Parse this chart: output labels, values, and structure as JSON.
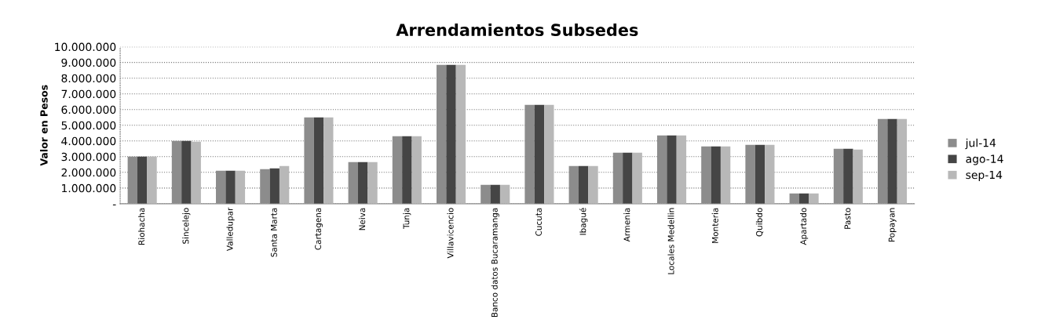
{
  "chart_data": {
    "type": "bar",
    "title": "Arrendamientos Subsedes",
    "ylabel": "Valor en Pesos",
    "categories": [
      "Riohacha",
      "Sincelejo",
      "Valledupar",
      "Santa Marta",
      "Cartagena",
      "Neiva",
      "Tunja",
      "Villavicencio",
      "Banco datos Bucaramanga",
      "Cucuta",
      "Ibagué",
      "Armenia",
      "Locales Medellin",
      "Monteria",
      "Quibdo",
      "Apartado",
      "Pasto",
      "Popayan"
    ],
    "series": [
      {
        "name": "jul-14",
        "color": "#8c8c8c",
        "values": [
          3000000,
          4000000,
          2100000,
          2200000,
          5500000,
          2650000,
          4300000,
          8850000,
          1200000,
          6300000,
          2400000,
          3250000,
          4350000,
          3650000,
          3750000,
          650000,
          3500000,
          5400000
        ]
      },
      {
        "name": "ago-14",
        "color": "#454545",
        "values": [
          3000000,
          4000000,
          2100000,
          2250000,
          5500000,
          2650000,
          4300000,
          8850000,
          1200000,
          6300000,
          2400000,
          3250000,
          4350000,
          3650000,
          3750000,
          650000,
          3500000,
          5400000
        ]
      },
      {
        "name": "sep-14",
        "color": "#b8b8b8",
        "values": [
          3000000,
          3950000,
          2100000,
          2400000,
          5500000,
          2650000,
          4300000,
          8850000,
          1200000,
          6300000,
          2400000,
          3250000,
          4350000,
          3650000,
          3750000,
          650000,
          3450000,
          5400000
        ]
      }
    ],
    "ylim": [
      0,
      10000000
    ],
    "yticks": [
      {
        "value": 0,
        "label": "-"
      },
      {
        "value": 1000000,
        "label": "1.000.000"
      },
      {
        "value": 2000000,
        "label": "2.000.000"
      },
      {
        "value": 3000000,
        "label": "3.000.000"
      },
      {
        "value": 4000000,
        "label": "4.000.000"
      },
      {
        "value": 5000000,
        "label": "5.000.000"
      },
      {
        "value": 6000000,
        "label": "6.000.000"
      },
      {
        "value": 7000000,
        "label": "7.000.000"
      },
      {
        "value": 8000000,
        "label": "8.000.000"
      },
      {
        "value": 9000000,
        "label": "9.000.000"
      },
      {
        "value": 10000000,
        "label": "10.000.000"
      }
    ],
    "grid": "y",
    "legend": "right"
  }
}
